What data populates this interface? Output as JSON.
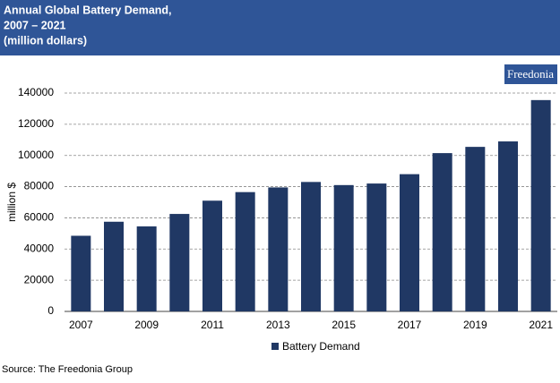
{
  "chart_data": {
    "type": "bar",
    "title": "Annual Global Battery Demand,",
    "subtitle": "2007 – 2021",
    "unit_note": "(million dollars)",
    "logo": "Freedonia",
    "y_label": "million $",
    "source": "Source: The Freedonia Group",
    "categories": [
      "2007",
      null,
      "2009",
      null,
      "2011",
      null,
      "2013",
      null,
      "2015",
      null,
      "2017",
      null,
      "2019",
      null,
      "2021"
    ],
    "series": [
      {
        "name": "Battery Demand",
        "color": "#203864",
        "values": [
          48500,
          57500,
          54500,
          62500,
          71000,
          76500,
          79500,
          83000,
          81000,
          82000,
          88000,
          101500,
          105500,
          109000,
          135500
        ]
      }
    ],
    "ylim": [
      0,
      140000
    ],
    "yticks": [
      0,
      20000,
      40000,
      60000,
      80000,
      100000,
      120000,
      140000
    ],
    "grid": true,
    "legend": "bottom"
  }
}
